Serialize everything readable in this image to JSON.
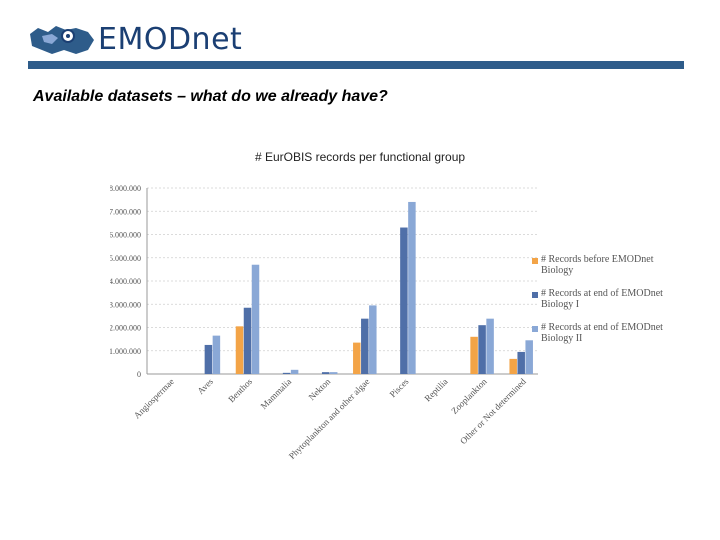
{
  "header": {
    "logo_text": "EMODnet",
    "title": "Available datasets – what do we already have?"
  },
  "colors": {
    "brand": "#1b3f73",
    "bar": "#2e5c8a",
    "series": [
      "#f3a447",
      "#4f6fa8",
      "#8aa8d6"
    ]
  },
  "chart_data": {
    "type": "bar",
    "title": "# EurOBIS records per functional group",
    "xlabel": "",
    "ylabel": "",
    "ylim": [
      0,
      8000000
    ],
    "yticks": [
      0,
      1000000,
      2000000,
      3000000,
      4000000,
      5000000,
      6000000,
      7000000,
      8000000
    ],
    "ytick_labels": [
      "0",
      "1.000.000",
      "2.000.000",
      "3.000.000",
      "4.000.000",
      "5.000.000",
      "6.000.000",
      "7.000.000",
      "8.000.000"
    ],
    "grid": true,
    "legend_position": "right",
    "categories": [
      "Angiospermae",
      "Aves",
      "Benthos",
      "Mammalia",
      "Nekton",
      "Phytoplankton and other algae",
      "Pisces",
      "Reptilia",
      "Zooplankton",
      "Other or Not determined"
    ],
    "series": [
      {
        "name": "# Records before EMODnet Biology",
        "values": [
          0,
          0,
          2050000,
          0,
          0,
          1350000,
          0,
          0,
          1600000,
          650000
        ]
      },
      {
        "name": "# Records at end of EMODnet Biology I",
        "values": [
          0,
          1250000,
          2850000,
          50000,
          80000,
          2380000,
          6300000,
          0,
          2100000,
          950000
        ]
      },
      {
        "name": "# Records at end of EMODnet Biology II",
        "values": [
          0,
          1650000,
          4700000,
          180000,
          80000,
          2950000,
          7400000,
          0,
          2380000,
          1450000
        ]
      }
    ]
  }
}
